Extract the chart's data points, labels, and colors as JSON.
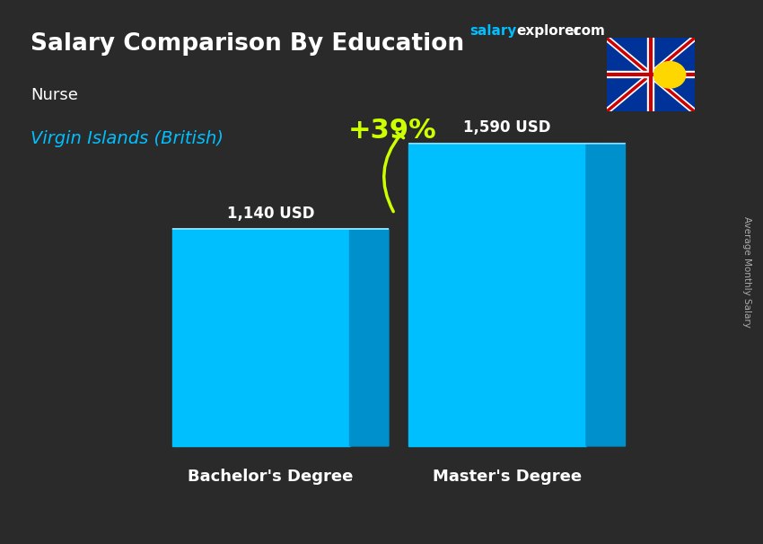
{
  "title": "Salary Comparison By Education",
  "subtitle_job": "Nurse",
  "subtitle_location": "Virgin Islands (British)",
  "categories": [
    "Bachelor's Degree",
    "Master's Degree"
  ],
  "values": [
    1140,
    1590
  ],
  "value_labels": [
    "1,140 USD",
    "1,590 USD"
  ],
  "pct_change": "+39%",
  "bar_color_face": "#00BFFF",
  "bar_color_top": "#80DFFF",
  "bar_color_side": "#0090CC",
  "bar_width": 0.3,
  "background_color": "#2a2a2a",
  "title_color": "#ffffff",
  "subtitle_job_color": "#ffffff",
  "subtitle_location_color": "#00BFFF",
  "value_label_color": "#ffffff",
  "category_label_color": "#ffffff",
  "pct_color": "#CCFF00",
  "arrow_color": "#CCFF00",
  "side_label": "Average Monthly Salary",
  "ylim": [
    0,
    2000
  ]
}
